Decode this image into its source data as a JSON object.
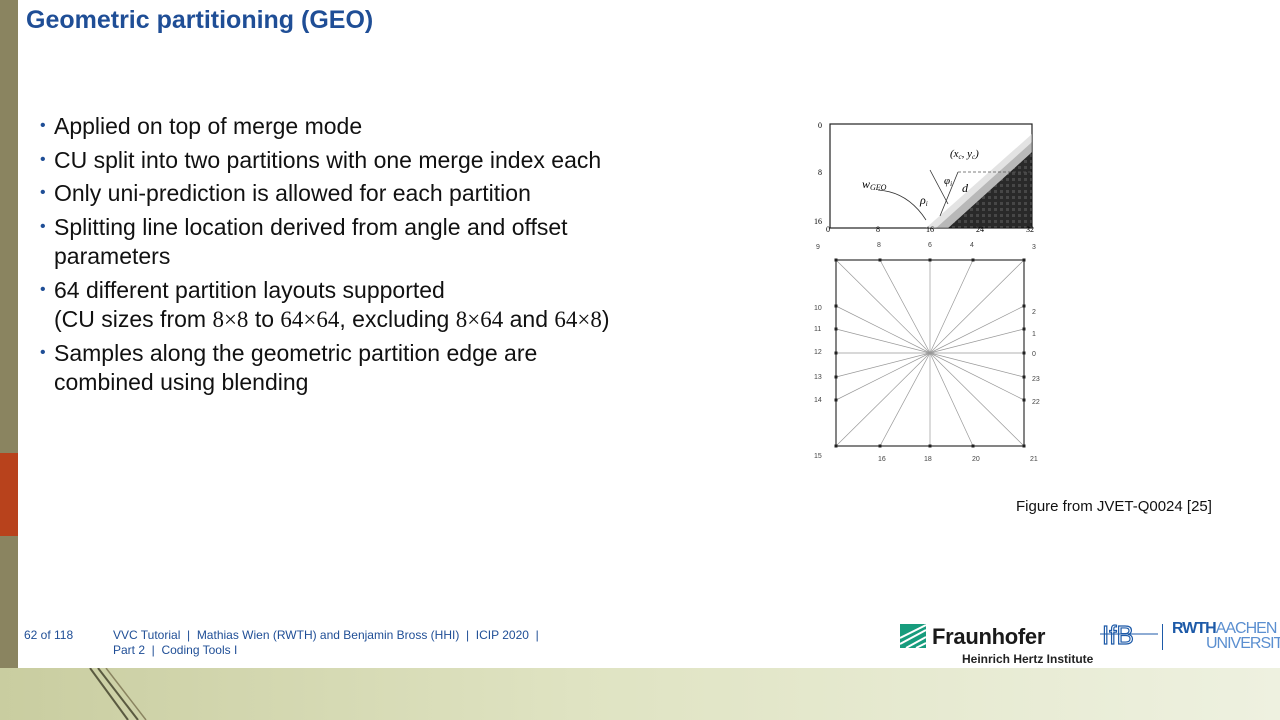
{
  "title": "Geometric partitioning (GEO)",
  "bullets": [
    {
      "text": "Applied on top of merge mode"
    },
    {
      "text": "CU split into two partitions with one merge index each"
    },
    {
      "text": "Only uni-prediction is allowed for each partition"
    },
    {
      "text": "Splitting line location derived from angle and offset parameters"
    },
    {
      "text": "64 different partition layouts supported"
    },
    {
      "prefix": "(CU sizes from ",
      "m1": "8×8",
      "mid1": " to ",
      "m2": "64×64",
      "mid2": ", excluding ",
      "m3": "8×64",
      "mid3": " and ",
      "m4": "64×8",
      "suffix": ")"
    },
    {
      "text": "Samples along the geometric partition edge are combined using blending"
    }
  ],
  "figure": {
    "top_panel": {
      "y_ticks": [
        "0",
        "8",
        "16"
      ],
      "x_ticks": [
        "0",
        "8",
        "16",
        "24",
        "32"
      ],
      "labels": {
        "w": "w",
        "w_sub": "GEO",
        "rho": "ρ",
        "rho_sub": "i",
        "phi": "φ",
        "phi_sub": "i",
        "d": "d",
        "center": "(x",
        "center_c": "c",
        "center_mid": ", y",
        "center_end": ")"
      }
    },
    "angle_panel": {
      "top_labels": [
        "9",
        "8",
        "6",
        "4",
        "3"
      ],
      "left_labels": [
        "10",
        "11",
        "12",
        "13",
        "14"
      ],
      "right_labels": [
        "2",
        "1",
        "0",
        "23",
        "22"
      ],
      "bottom_labels": [
        "15",
        "16",
        "18",
        "20",
        "21"
      ]
    }
  },
  "caption": "Figure from JVET-Q0024 [25]",
  "footer": {
    "page": "62 of 118",
    "line1": "VVC Tutorial  |  Mathias Wien (RWTH) and Benjamin Bross (HHI)  |  ICIP 2020  |",
    "line2": "Part 2  |  Coding Tools I"
  },
  "logos": {
    "fraunhofer": "Fraunhofer",
    "fraunhofer_sub": "Heinrich Hertz Institute",
    "ifb": "IfB",
    "rwth_bold": "RWTH",
    "rwth_light": "AACHEN",
    "rwth_university": "UNIVERSITY"
  }
}
